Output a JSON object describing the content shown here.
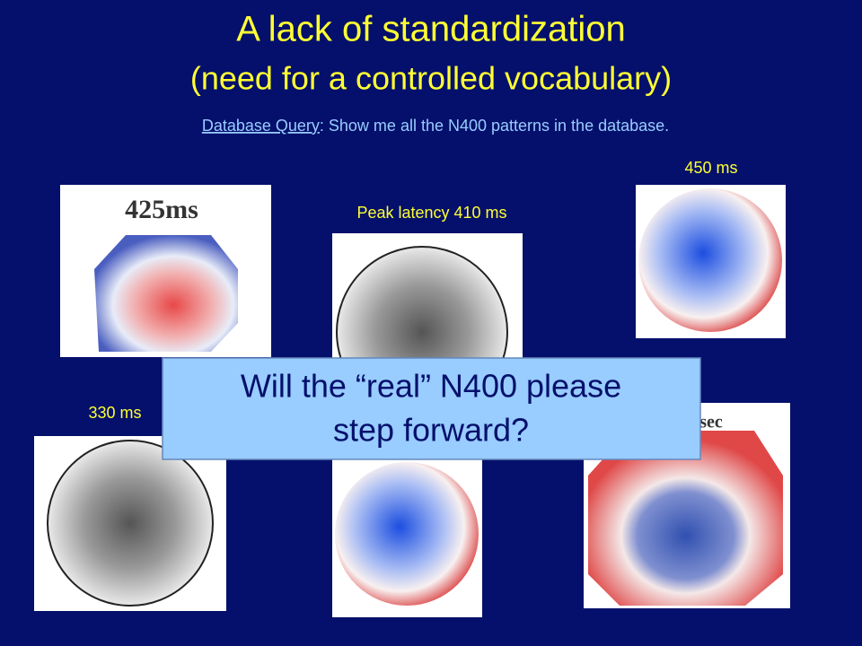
{
  "title": {
    "line1": "A lack of standardization",
    "line2": "(need for a controlled vocabulary)"
  },
  "query": {
    "link": "Database Query",
    "text": ": Show me all the N400 patterns in the database."
  },
  "maps": [
    {
      "label": "425ms"
    },
    {
      "label": "Peak latency 410 ms"
    },
    {
      "label": "450 ms"
    },
    {
      "label": "330 ms"
    },
    {
      "label": "sec"
    }
  ],
  "callout": {
    "line1": "Will the “real” N400 please",
    "line2": "step forward?"
  }
}
